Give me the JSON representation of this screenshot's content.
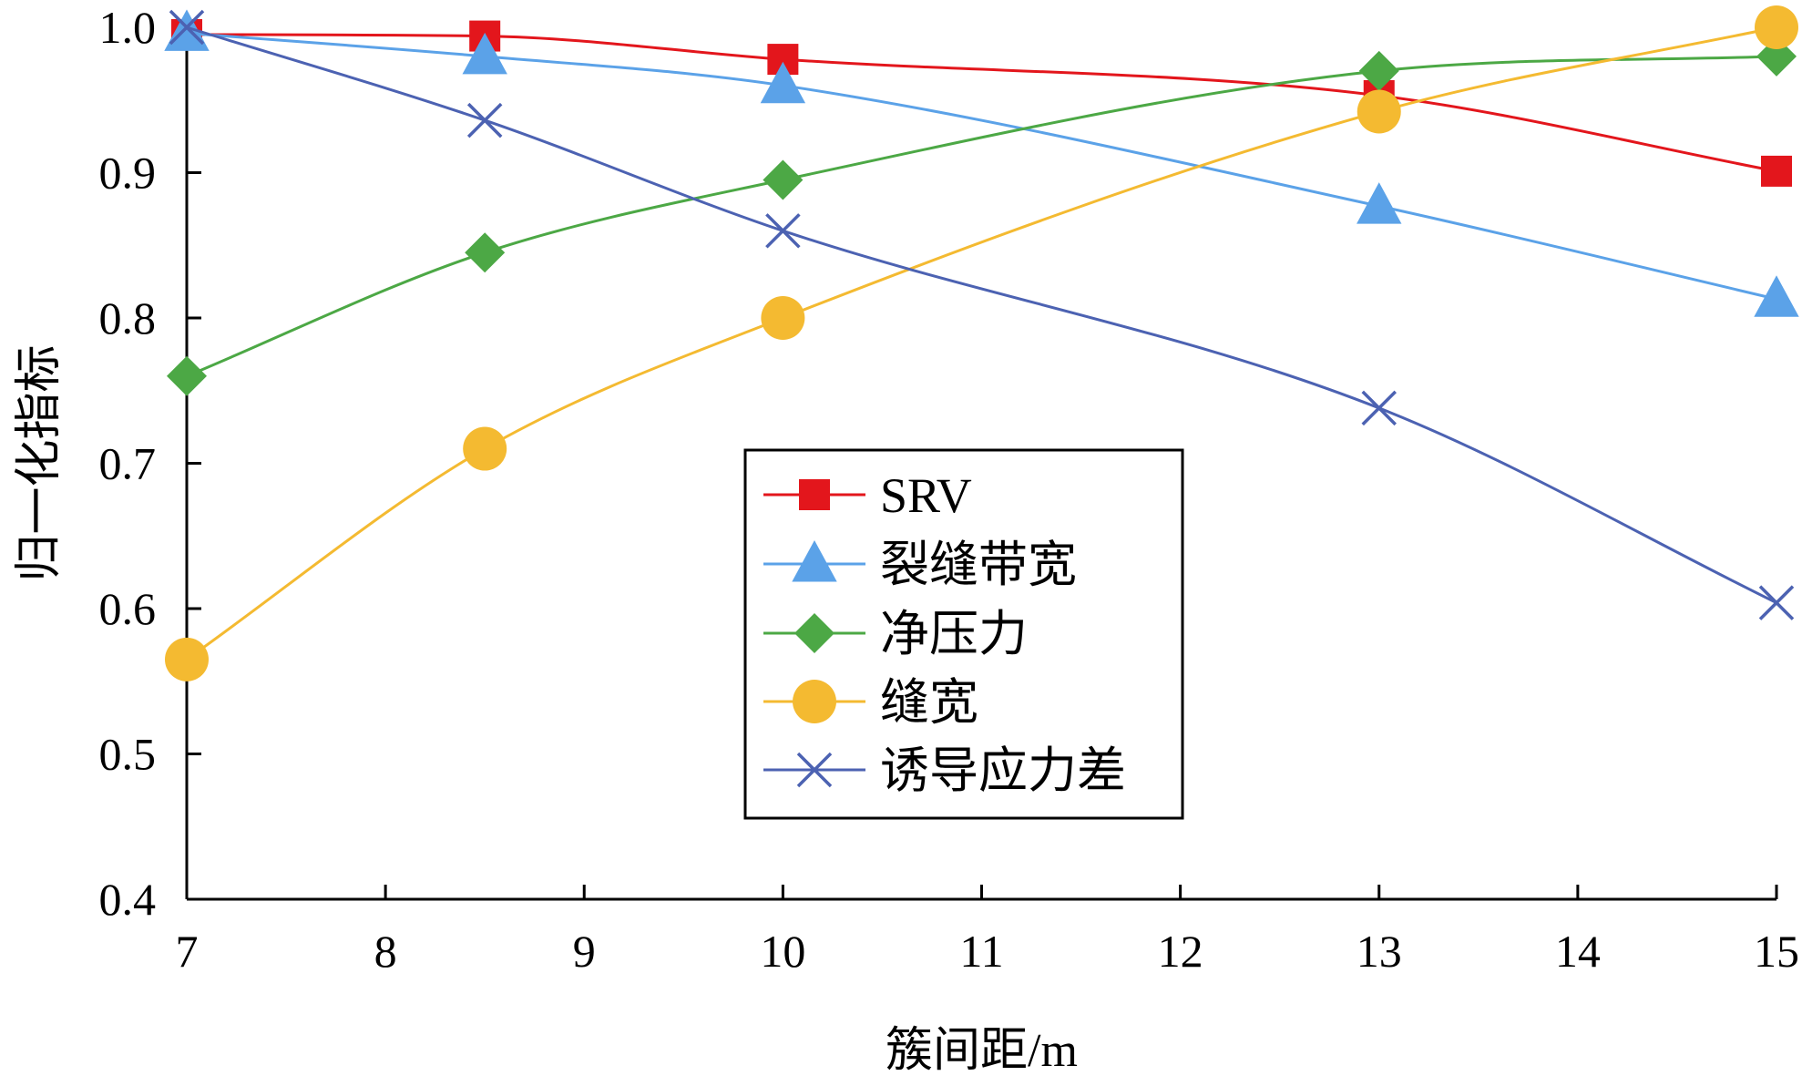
{
  "chart_data": {
    "type": "line",
    "title": "",
    "xlabel": "簇间距/m",
    "ylabel": "归一化指标",
    "xlim": [
      7,
      15
    ],
    "ylim": [
      0.4,
      1.0
    ],
    "x_ticks": [
      7,
      8,
      9,
      10,
      11,
      12,
      13,
      14,
      15
    ],
    "x_tick_labels": [
      "7",
      "8",
      "9",
      "10",
      "11",
      "12",
      "13",
      "14",
      "15"
    ],
    "y_ticks": [
      0.4,
      0.5,
      0.6,
      0.7,
      0.8,
      0.9,
      1.0
    ],
    "y_tick_labels": [
      "0.4",
      "0.5",
      "0.6",
      "0.7",
      "0.8",
      "0.9",
      "1.0"
    ],
    "grid": false,
    "legend_position": "center",
    "smooth": true,
    "series": [
      {
        "name": "SRV",
        "marker": "square",
        "color": "#E3161C",
        "x": [
          7,
          8.5,
          10,
          13,
          15
        ],
        "y": [
          0.995,
          0.994,
          0.978,
          0.953,
          0.901
        ]
      },
      {
        "name": "裂缝带宽",
        "marker": "triangle",
        "color": "#5BA2E8",
        "x": [
          7,
          8.5,
          10,
          13,
          15
        ],
        "y": [
          0.996,
          0.98,
          0.96,
          0.877,
          0.813
        ]
      },
      {
        "name": "净压力",
        "marker": "diamond",
        "color": "#4CA845",
        "x": [
          7,
          8.5,
          10,
          13,
          15
        ],
        "y": [
          0.76,
          0.845,
          0.895,
          0.97,
          0.98
        ]
      },
      {
        "name": "缝宽",
        "marker": "circle",
        "color": "#F4BA31",
        "x": [
          7,
          8.5,
          10,
          13,
          15
        ],
        "y": [
          0.565,
          0.71,
          0.8,
          0.942,
          1.0
        ]
      },
      {
        "name": "诱导应力差",
        "marker": "x",
        "color": "#4C62B2",
        "x": [
          7,
          8.5,
          10,
          13,
          15
        ],
        "y": [
          1.0,
          0.936,
          0.86,
          0.738,
          0.604
        ]
      }
    ]
  }
}
